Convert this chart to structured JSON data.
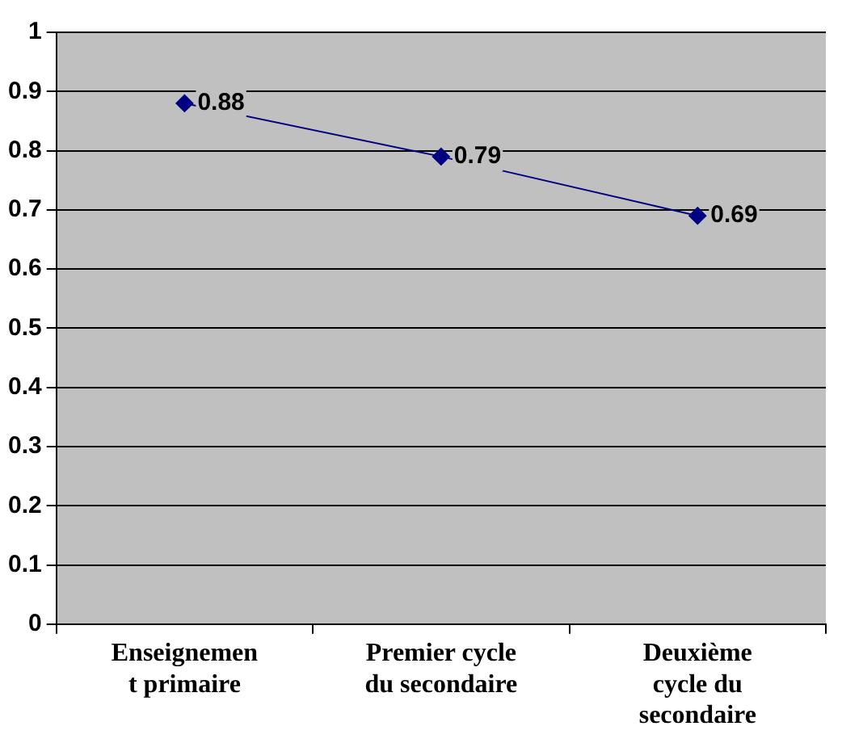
{
  "chart_data": {
    "type": "line",
    "categories": [
      "Enseignemen\nt primaire",
      "Premier cycle\ndu secondaire",
      "Deuxième\ncycle du\nsecondaire"
    ],
    "series": [
      {
        "color": "#000080",
        "values": [
          0.88,
          0.79,
          0.69
        ]
      }
    ],
    "ylim": [
      0,
      1
    ],
    "yticks": [
      0,
      0.1,
      0.2,
      0.3,
      0.4,
      0.5,
      0.6,
      0.7,
      0.8,
      0.9,
      1
    ],
    "grid": "y",
    "legend": false,
    "marker": "diamond",
    "line_style": "solid",
    "data_labels": true
  }
}
